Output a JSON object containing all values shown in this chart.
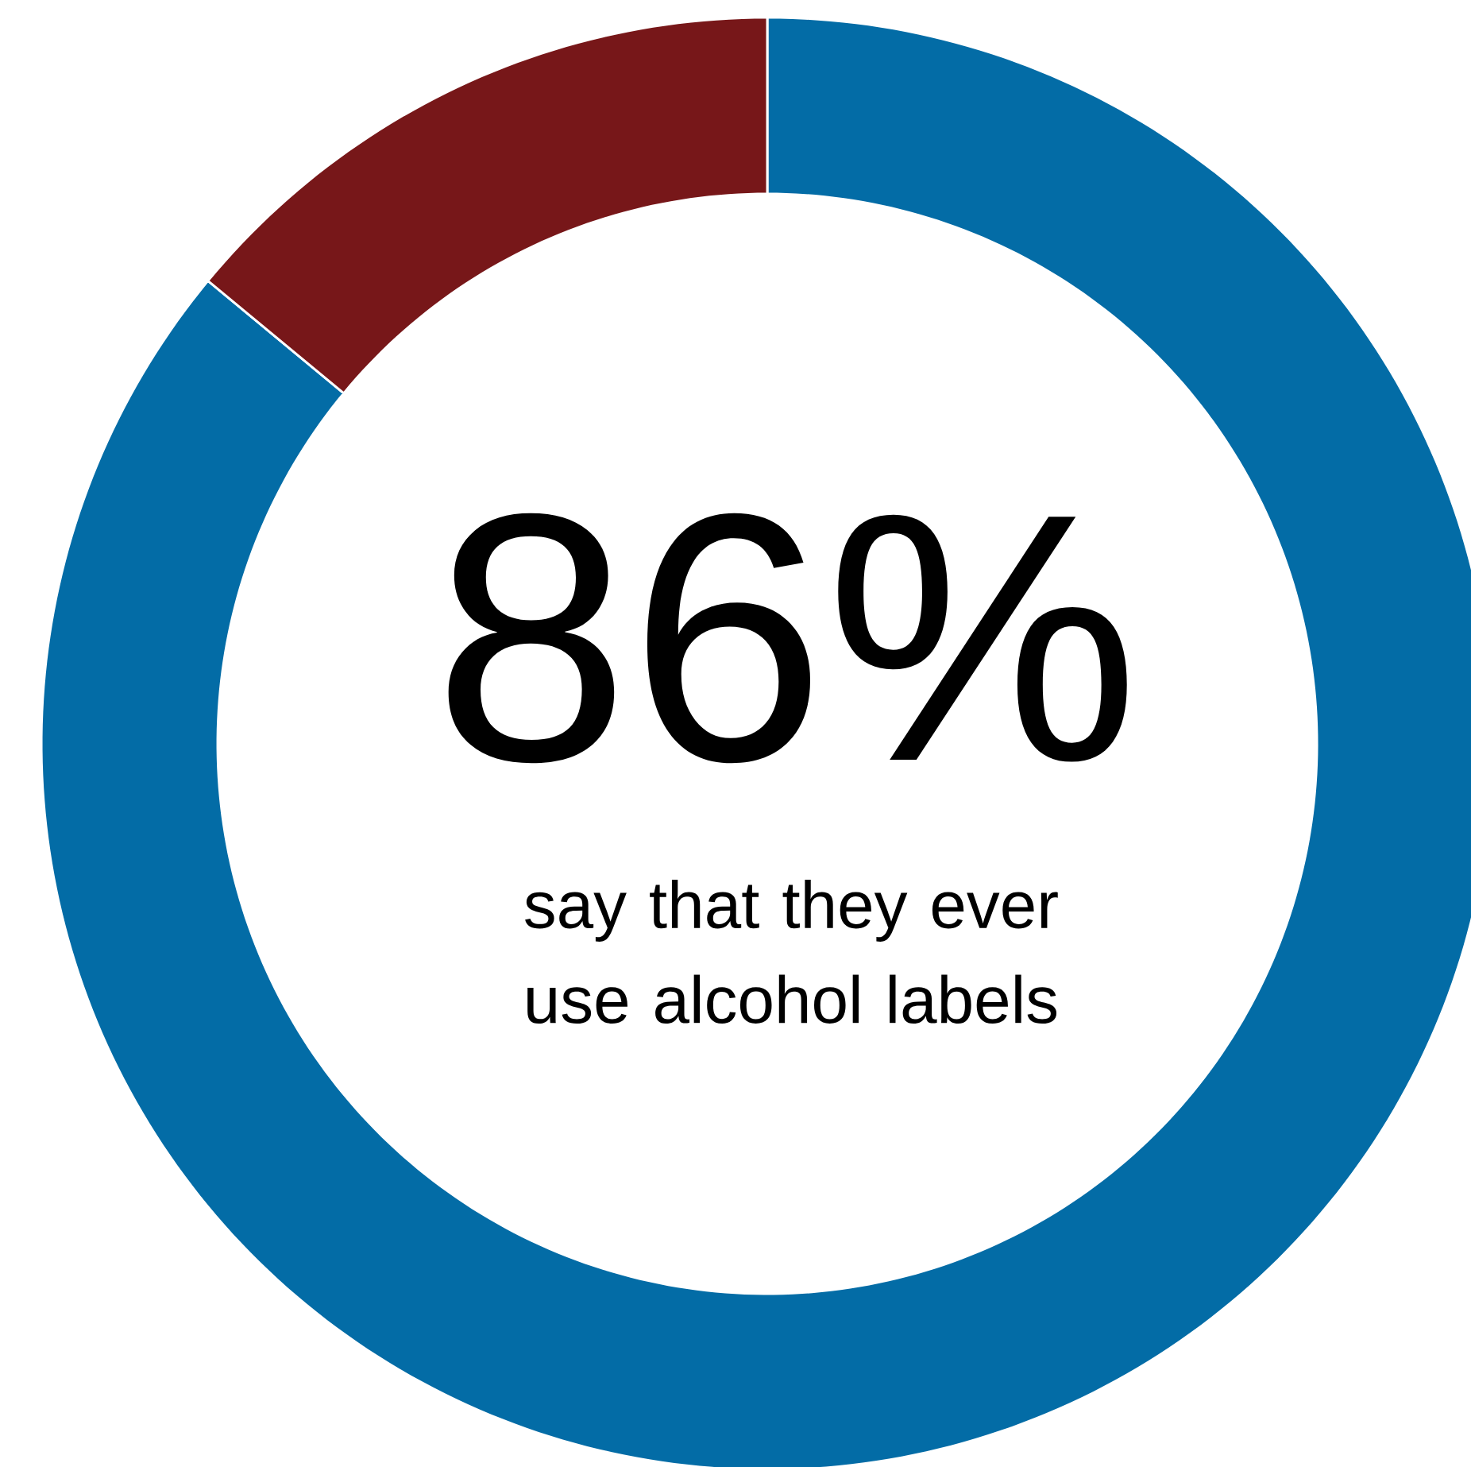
{
  "chart_data": {
    "type": "donut",
    "categories": [
      null,
      null
    ],
    "values": [
      86,
      14
    ],
    "colors": [
      "#036ca6",
      "#771719"
    ],
    "annotations": [
      "86%",
      "say that they ever use alcohol labels"
    ]
  }
}
